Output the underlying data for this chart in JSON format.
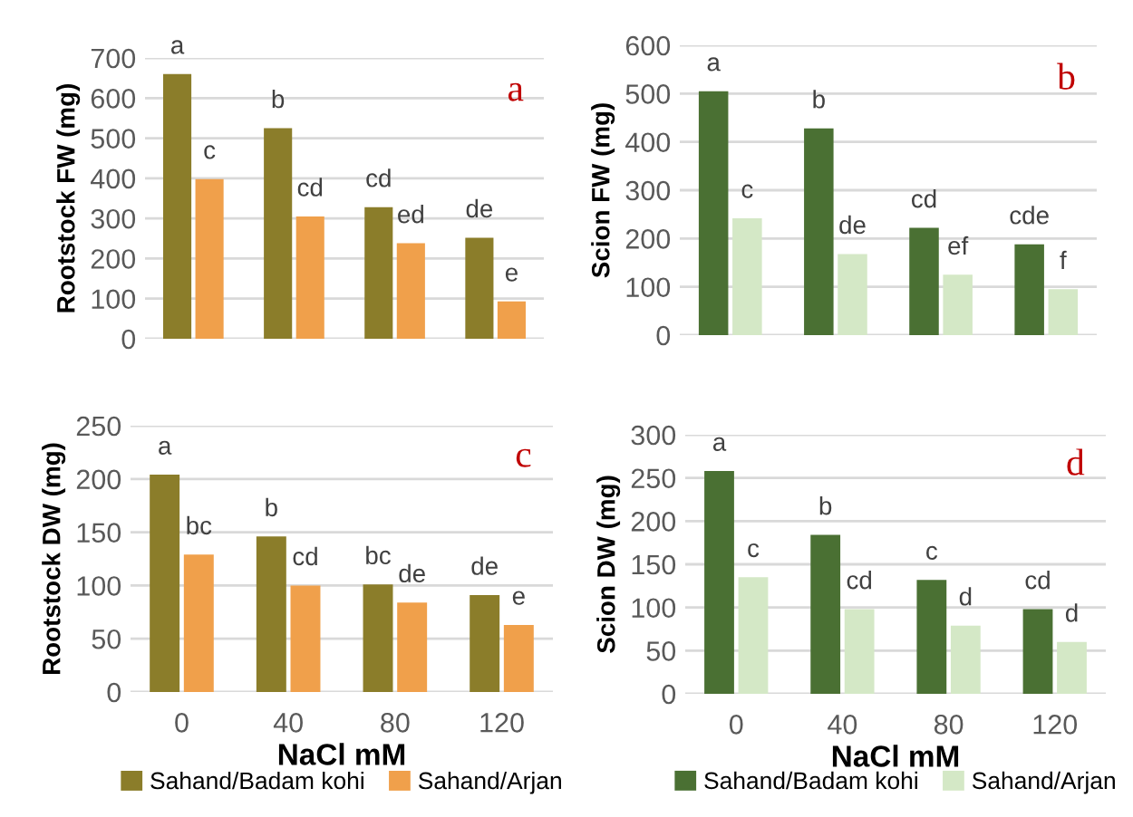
{
  "chart_data": [
    {
      "type": "bar",
      "categories": [
        "0",
        "40",
        "80",
        "120"
      ],
      "ylabel": "Rootstock FW (mg)",
      "ylim": [
        0,
        700
      ],
      "yticks": [
        0,
        100,
        200,
        300,
        400,
        500,
        600,
        700
      ],
      "grid": "y",
      "tick_labels": "y",
      "annotations": [
        "a"
      ],
      "legend": false,
      "series": [
        {
          "color": "#8b7d2a",
          "values": [
            660,
            525,
            328,
            252
          ],
          "value_labels": [
            "a",
            "b",
            "cd",
            "de"
          ]
        },
        {
          "color": "#f0a04b",
          "values": [
            398,
            305,
            238,
            93
          ],
          "value_labels": [
            "c",
            "cd",
            "ed",
            "e"
          ]
        }
      ]
    },
    {
      "type": "bar",
      "categories": [
        "0",
        "40",
        "80",
        "120"
      ],
      "ylabel": "Scion FW (mg)",
      "ylim": [
        0,
        600
      ],
      "yticks": [
        0,
        100,
        200,
        300,
        400,
        500,
        600
      ],
      "grid": "y",
      "tick_labels": "y",
      "annotations": [
        "b"
      ],
      "legend": false,
      "series": [
        {
          "color": "#4a7033",
          "values": [
            505,
            428,
            222,
            188
          ],
          "value_labels": [
            "a",
            "b",
            "cd",
            "cde"
          ]
        },
        {
          "color": "#d4e8c6",
          "values": [
            242,
            168,
            125,
            95
          ],
          "value_labels": [
            "c",
            "de",
            "ef",
            "f"
          ]
        }
      ]
    },
    {
      "type": "bar",
      "categories": [
        "0",
        "40",
        "80",
        "120"
      ],
      "xlabel": "NaCl mM",
      "ylabel": "Rootstock DW (mg)",
      "ylim": [
        0,
        250
      ],
      "yticks": [
        0,
        50,
        100,
        150,
        200,
        250
      ],
      "grid": "y",
      "annotations": [
        "c"
      ],
      "legend": "bottom",
      "series": [
        {
          "name": "Sahand/Badam kohi",
          "color": "#8b7d2a",
          "values": [
            204,
            146,
            101,
            91
          ],
          "value_labels": [
            "a",
            "b",
            "bc",
            "de"
          ]
        },
        {
          "name": "Sahand/Arjan",
          "color": "#f0a04b",
          "values": [
            129,
            100,
            84,
            63
          ],
          "value_labels": [
            "bc",
            "cd",
            "de",
            "e"
          ]
        }
      ]
    },
    {
      "type": "bar",
      "categories": [
        "0",
        "40",
        "80",
        "120"
      ],
      "xlabel": "NaCl mM",
      "ylabel": "Scion DW (mg)",
      "ylim": [
        0,
        300
      ],
      "yticks": [
        0,
        50,
        100,
        150,
        200,
        250,
        300
      ],
      "grid": "y",
      "annotations": [
        "d"
      ],
      "legend": "bottom",
      "series": [
        {
          "name": "Sahand/Badam kohi",
          "color": "#4a7033",
          "values": [
            258,
            184,
            132,
            98
          ],
          "value_labels": [
            "a",
            "b",
            "c",
            "cd"
          ]
        },
        {
          "name": "Sahand/Arjan",
          "color": "#d4e8c6",
          "values": [
            135,
            98,
            79,
            60
          ],
          "value_labels": [
            "c",
            "cd",
            "d",
            "d"
          ]
        }
      ]
    }
  ]
}
